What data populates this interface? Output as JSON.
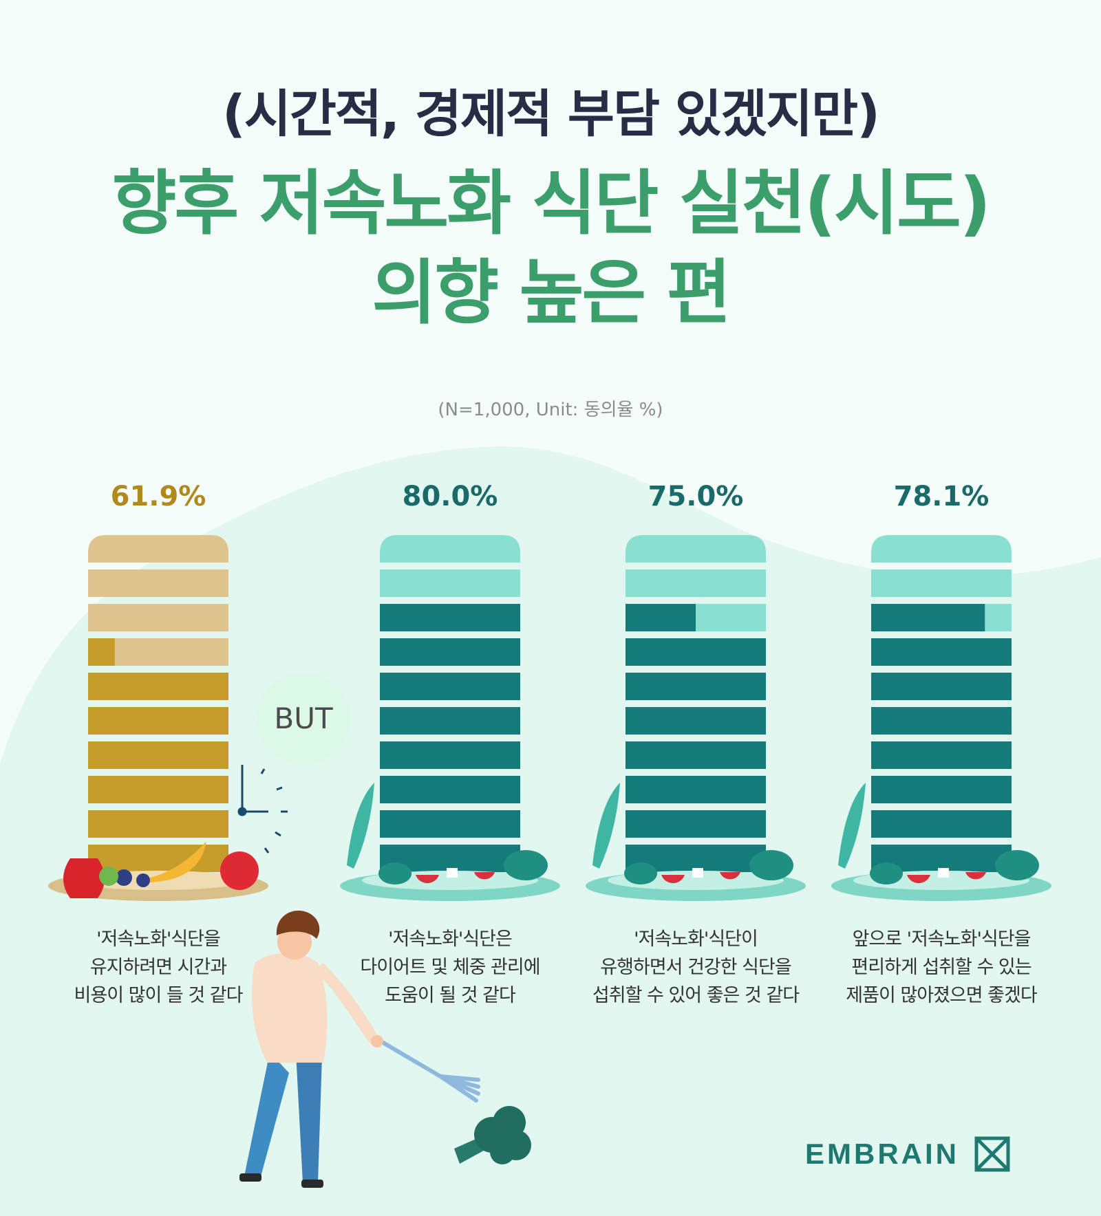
{
  "header": {
    "subtitle": "(시간적, 경제적 부담 있겠지만)",
    "title_line1": "향후 저속노화 식단 실천(시도)",
    "title_line2": "의향 높은 편"
  },
  "note": "(N=1,000, Unit: 동의율 %)",
  "but_label": "BUT",
  "captions": [
    [
      "'저속노화'식단을",
      "유지하려면 시간과",
      "비용이 많이 들 것 같다"
    ],
    [
      "'저속노화'식단은",
      "다이어트 및 체중 관리에",
      "도움이 될 것 같다"
    ],
    [
      "'저속노화'식단이",
      "유행하면서 건강한 식단을",
      "섭취할 수 있어 좋은 것 같다"
    ],
    [
      "앞으로 '저속노화'식단을",
      "편리하게 섭취할 수 있는",
      "제품이 많아졌으면 좋겠다"
    ]
  ],
  "logo": {
    "text": "EMBRAIN"
  },
  "colors": {
    "gold_light": "#dfc48d",
    "gold_dark": "#c69c2a",
    "teal_light": "#8ae0d0",
    "teal_dark": "#147a7a",
    "value_gold": "#b08a1e",
    "value_teal": "#1a6a6a"
  },
  "chart_data": {
    "type": "bar",
    "categories": [
      "'저속노화'식단을 유지하려면 시간과 비용이 많이 들 것 같다",
      "'저속노화'식단은 다이어트 및 체중 관리에 도움이 될 것 같다",
      "'저속노화'식단이 유행하면서 건강한 식단을 섭취할 수 있어 좋은 것 같다",
      "앞으로 '저속노화'식단을 편리하게 섭취할 수 있는 제품이 많아졌으면 좋겠다"
    ],
    "values": [
      61.9,
      80.0,
      75.0,
      78.1
    ],
    "value_labels": [
      "61.9%",
      "80.0%",
      "75.0%",
      "78.1%"
    ],
    "ylim": [
      0,
      100
    ],
    "unit": "%",
    "n": 1000
  }
}
